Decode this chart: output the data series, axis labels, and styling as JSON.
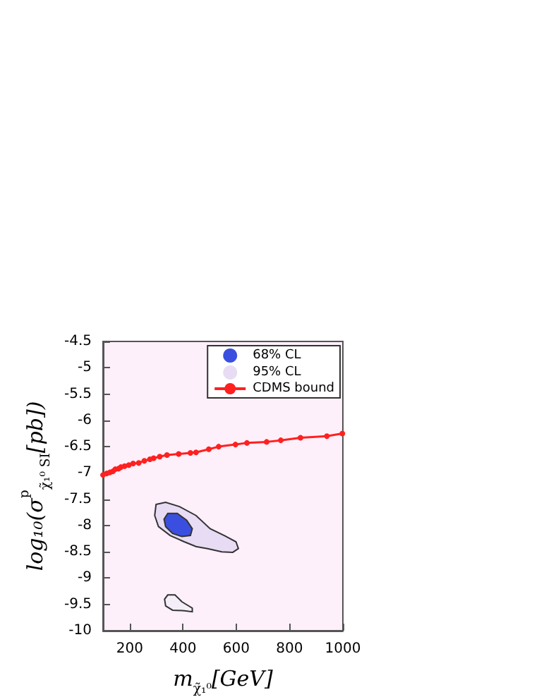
{
  "chart_data": {
    "type": "line",
    "xlabel": "m$_{χ̃₁⁰}$[GeV]",
    "ylabel": "log₁₀(σ$^{p}$$_{χ̃₁⁰ SI}$[pb])",
    "xlim": [
      100,
      1000
    ],
    "xticks": [
      200,
      400,
      600,
      800,
      1000
    ],
    "ylim": [
      -10,
      -4.5
    ],
    "yticks": [
      -10,
      -9.5,
      -9,
      -8.5,
      -8,
      -7.5,
      -7,
      -6.5,
      -6,
      -5.5,
      -5,
      -4.5
    ],
    "grid": false,
    "legend": "top right",
    "series": [
      {
        "name": "68% CL",
        "type": "area",
        "color": "#3a4fe0",
        "x": [
          343,
          379,
          414,
          435,
          428,
          396,
          361,
          335,
          329
        ],
        "values": [
          -7.77,
          -7.77,
          -7.9,
          -8.06,
          -8.19,
          -8.21,
          -8.15,
          -8.02,
          -7.88
        ]
      },
      {
        "name": "95% CL",
        "type": "area",
        "color": "#e8dcf4",
        "x": [
          299,
          335,
          387,
          449,
          502,
          555,
          599,
          608,
          587,
          546,
          493,
          449,
          405,
          352,
          308,
          294
        ],
        "values": [
          -7.6,
          -7.56,
          -7.64,
          -7.81,
          -8.06,
          -8.19,
          -8.31,
          -8.44,
          -8.51,
          -8.5,
          -8.44,
          -8.4,
          -8.31,
          -8.19,
          -8.02,
          -7.81
        ]
      },
      {
        "type": "area",
        "color": "#f4eef8",
        "x": [
          343,
          370,
          396,
          435,
          435,
          405,
          361,
          335,
          331
        ],
        "values": [
          -9.32,
          -9.32,
          -9.45,
          -9.57,
          -9.64,
          -9.62,
          -9.61,
          -9.53,
          -9.4
        ]
      },
      {
        "name": "CDMS bound",
        "color": "#ff2020",
        "marker": "circle",
        "line_style": "solid",
        "x": [
          100,
          114,
          126,
          137,
          146,
          158,
          167,
          181,
          197,
          213,
          234,
          255,
          276,
          290,
          313,
          340,
          384,
          428,
          449,
          497,
          534,
          597,
          640,
          714,
          767,
          841,
          940,
          998
        ],
        "values": [
          -7.04,
          -7.01,
          -6.99,
          -6.97,
          -6.93,
          -6.92,
          -6.89,
          -6.87,
          -6.85,
          -6.82,
          -6.81,
          -6.77,
          -6.74,
          -6.72,
          -6.69,
          -6.66,
          -6.64,
          -6.62,
          -6.61,
          -6.55,
          -6.5,
          -6.46,
          -6.43,
          -6.41,
          -6.38,
          -6.33,
          -6.3,
          -6.25
        ]
      }
    ]
  }
}
